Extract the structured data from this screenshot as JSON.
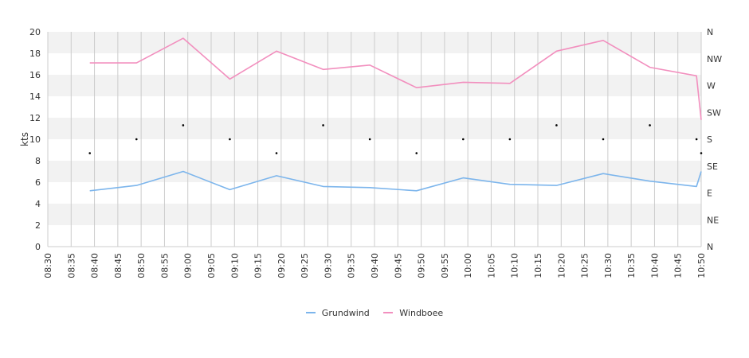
{
  "chart_data": {
    "type": "line",
    "title": "",
    "xlabel": "",
    "ylabel": "kts",
    "ylim": [
      0,
      20
    ],
    "xlim": [
      "08:30",
      "10:50"
    ],
    "yticks": [
      "0",
      "2",
      "4",
      "6",
      "8",
      "10",
      "12",
      "14",
      "16",
      "18",
      "20"
    ],
    "xticks": [
      "08:30",
      "08:35",
      "08:40",
      "08:45",
      "08:50",
      "08:55",
      "09:00",
      "09:05",
      "09:10",
      "09:15",
      "09:20",
      "09:25",
      "09:30",
      "09:35",
      "09:40",
      "09:45",
      "09:50",
      "09:55",
      "10:00",
      "10:05",
      "10:10",
      "10:15",
      "10:20",
      "10:25",
      "10:30",
      "10:35",
      "10:40",
      "10:45",
      "10:50"
    ],
    "y2_labels": [
      "N",
      "NE",
      "E",
      "SE",
      "S",
      "SW",
      "W",
      "NW",
      "N"
    ],
    "grid": true,
    "legend_position": "bottom",
    "series": [
      {
        "name": "Grundwind",
        "color": "#7cb5ec",
        "points": [
          [
            "08:39",
            5.2
          ],
          [
            "08:49",
            5.7
          ],
          [
            "08:59",
            7.0
          ],
          [
            "09:09",
            5.3
          ],
          [
            "09:19",
            6.6
          ],
          [
            "09:29",
            5.6
          ],
          [
            "09:39",
            5.5
          ],
          [
            "09:49",
            5.2
          ],
          [
            "09:59",
            6.4
          ],
          [
            "10:09",
            5.8
          ],
          [
            "10:19",
            5.7
          ],
          [
            "10:29",
            6.8
          ],
          [
            "10:39",
            6.1
          ],
          [
            "10:49",
            5.6
          ],
          [
            "10:50",
            7.0
          ]
        ]
      },
      {
        "name": "Windboee",
        "color": "#f28fbe",
        "points": [
          [
            "08:39",
            17.1
          ],
          [
            "08:49",
            17.1
          ],
          [
            "08:59",
            19.4
          ],
          [
            "09:09",
            15.6
          ],
          [
            "09:19",
            18.2
          ],
          [
            "09:29",
            16.5
          ],
          [
            "09:39",
            16.9
          ],
          [
            "09:49",
            14.8
          ],
          [
            "09:59",
            15.3
          ],
          [
            "10:09",
            15.2
          ],
          [
            "10:19",
            18.2
          ],
          [
            "10:29",
            19.2
          ],
          [
            "10:39",
            16.7
          ],
          [
            "10:49",
            15.9
          ],
          [
            "10:50",
            11.8
          ]
        ]
      }
    ],
    "direction_markers": [
      [
        "08:39",
        8.7
      ],
      [
        "08:49",
        10.0
      ],
      [
        "08:59",
        11.3
      ],
      [
        "09:09",
        10.0
      ],
      [
        "09:19",
        8.7
      ],
      [
        "09:29",
        11.3
      ],
      [
        "09:39",
        10.0
      ],
      [
        "09:49",
        8.7
      ],
      [
        "09:59",
        10.0
      ],
      [
        "10:09",
        10.0
      ],
      [
        "10:19",
        11.3
      ],
      [
        "10:29",
        10.0
      ],
      [
        "10:39",
        11.3
      ],
      [
        "10:49",
        10.0
      ],
      [
        "10:50",
        8.7
      ]
    ]
  }
}
